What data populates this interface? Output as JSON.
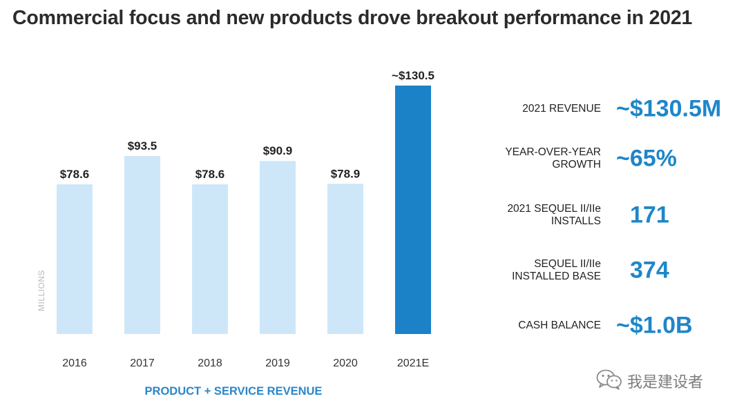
{
  "title": "Commercial focus and new products drove breakout performance in 2021",
  "chart_data": {
    "type": "bar",
    "categories": [
      "2016",
      "2017",
      "2018",
      "2019",
      "2020",
      "2021E"
    ],
    "values": [
      78.6,
      93.5,
      78.6,
      90.9,
      78.9,
      130.5
    ],
    "value_labels": [
      "$78.6",
      "$93.5",
      "$78.6",
      "$90.9",
      "$78.9",
      "~$130.5"
    ],
    "xlabel": "PRODUCT + SERVICE REVENUE",
    "ylabel": "MILLIONS",
    "ylim": [
      0,
      130.5
    ],
    "grid": false,
    "colors": {
      "default": "#cde7f9",
      "highlight": "#1b82c7"
    },
    "highlight_index": 5
  },
  "stats": [
    {
      "label": "2021 REVENUE",
      "value": "~$130.5M"
    },
    {
      "label": "YEAR-OVER-YEAR\nGROWTH",
      "value": "~65%"
    },
    {
      "label": "2021 SEQUEL II/IIe\nINSTALLS",
      "value": "171"
    },
    {
      "label": "SEQUEL II/IIe\nINSTALLED BASE",
      "value": "374"
    },
    {
      "label": "CASH BALANCE",
      "value": "~$1.0B"
    }
  ],
  "watermark": {
    "text": "我是建设者",
    "icon": "wechat-icon"
  },
  "colors": {
    "title": "#2b2b2b",
    "accent": "#1e86c9"
  }
}
